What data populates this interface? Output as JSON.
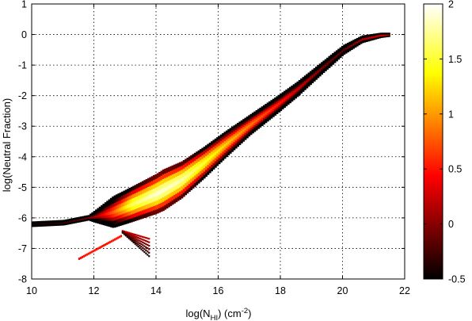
{
  "chart_data": {
    "type": "heatmap",
    "title": "",
    "xlabel": "log(N",
    "xlabel_sub": "HI",
    "xlabel_units": ") (cm",
    "xlabel_sup": "-2",
    "xlabel_end": ")",
    "ylabel": "log(Neutral Fraction)",
    "xlim": [
      10,
      22
    ],
    "ylim": [
      -8,
      1
    ],
    "x_ticks": [
      "10",
      "12",
      "14",
      "16",
      "18",
      "20",
      "22"
    ],
    "y_ticks": [
      "1",
      "0",
      "-1",
      "-2",
      "-3",
      "-4",
      "-5",
      "-6",
      "-7",
      "-8"
    ],
    "grid": true,
    "colormap": "hot",
    "colorbar_range": [
      -0.5,
      2
    ],
    "colorbar_ticks": [
      "2",
      "1.5",
      "1",
      "0.5",
      "0",
      "-0.5"
    ],
    "ridge": [
      {
        "x": 10.0,
        "y": -6.2,
        "v": -0.3
      },
      {
        "x": 11.0,
        "y": -6.15,
        "v": -0.2
      },
      {
        "x": 12.0,
        "y": -5.95,
        "v": 0.1
      },
      {
        "x": 12.6,
        "y": -5.8,
        "v": 0.8
      },
      {
        "x": 13.2,
        "y": -5.55,
        "v": 1.6
      },
      {
        "x": 14.0,
        "y": -5.2,
        "v": 1.9
      },
      {
        "x": 14.8,
        "y": -4.75,
        "v": 1.8
      },
      {
        "x": 15.5,
        "y": -4.2,
        "v": 1.5
      },
      {
        "x": 16.2,
        "y": -3.6,
        "v": 1.2
      },
      {
        "x": 17.0,
        "y": -2.95,
        "v": 0.9
      },
      {
        "x": 17.8,
        "y": -2.35,
        "v": 0.6
      },
      {
        "x": 18.5,
        "y": -1.8,
        "v": 0.3
      },
      {
        "x": 19.3,
        "y": -1.1,
        "v": 0.0
      },
      {
        "x": 20.0,
        "y": -0.5,
        "v": -0.1
      },
      {
        "x": 20.6,
        "y": -0.15,
        "v": 0.2
      },
      {
        "x": 21.2,
        "y": -0.02,
        "v": 0.4
      },
      {
        "x": 21.5,
        "y": 0.0,
        "v": 0.2
      }
    ]
  }
}
